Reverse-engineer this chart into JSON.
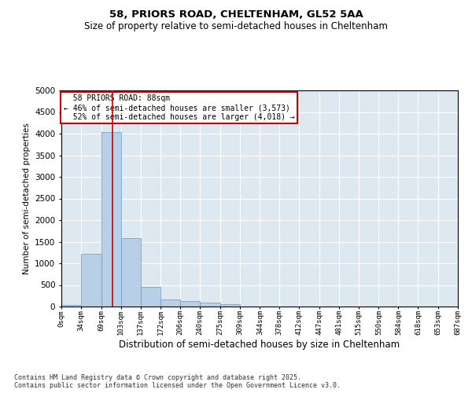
{
  "title_line1": "58, PRIORS ROAD, CHELTENHAM, GL52 5AA",
  "title_line2": "Size of property relative to semi-detached houses in Cheltenham",
  "xlabel": "Distribution of semi-detached houses by size in Cheltenham",
  "ylabel": "Number of semi-detached properties",
  "bin_edges": [
    0,
    34,
    69,
    103,
    137,
    172,
    206,
    240,
    275,
    309,
    344,
    378,
    412,
    447,
    481,
    515,
    550,
    584,
    618,
    653,
    687
  ],
  "bin_counts": [
    30,
    1210,
    4040,
    1580,
    460,
    170,
    130,
    90,
    50,
    0,
    0,
    0,
    0,
    0,
    0,
    0,
    0,
    0,
    0,
    0
  ],
  "bar_color": "#b8cfe8",
  "bar_edge_color": "#6699cc",
  "subject_size": 88,
  "subject_label": "58 PRIORS ROAD: 88sqm",
  "pct_smaller": 46,
  "pct_smaller_n": "3,573",
  "pct_larger": 52,
  "pct_larger_n": "4,018",
  "vline_color": "#cc0000",
  "annotation_box_color": "#cc0000",
  "ylim": [
    0,
    5000
  ],
  "yticks": [
    0,
    500,
    1000,
    1500,
    2000,
    2500,
    3000,
    3500,
    4000,
    4500,
    5000
  ],
  "bg_color": "#dde8f0",
  "grid_color": "#ffffff",
  "fig_bg_color": "#ffffff",
  "tick_labels": [
    "0sqm",
    "34sqm",
    "69sqm",
    "103sqm",
    "137sqm",
    "172sqm",
    "206sqm",
    "240sqm",
    "275sqm",
    "309sqm",
    "344sqm",
    "378sqm",
    "412sqm",
    "447sqm",
    "481sqm",
    "515sqm",
    "550sqm",
    "584sqm",
    "618sqm",
    "653sqm",
    "687sqm"
  ],
  "footnote": "Contains HM Land Registry data © Crown copyright and database right 2025.\nContains public sector information licensed under the Open Government Licence v3.0."
}
